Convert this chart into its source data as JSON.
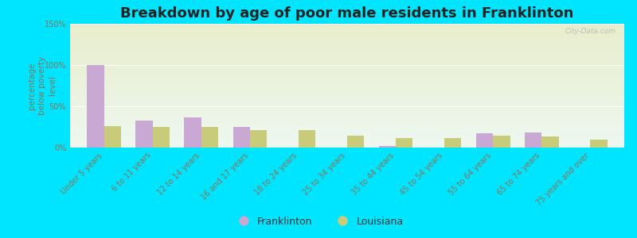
{
  "title": "Breakdown by age of poor male residents in Franklinton",
  "ylabel": "percentage\nbelow poverty\nlevel",
  "categories": [
    "Under 5 years",
    "6 to 11 years",
    "12 to 14 years",
    "16 and 17 years",
    "18 to 24 years",
    "25 to 34 years",
    "35 to 44 years",
    "45 to 54 years",
    "55 to 64 years",
    "65 to 74 years",
    "75 years and over"
  ],
  "franklinton_values": [
    100,
    33,
    37,
    25,
    0,
    0,
    2,
    0,
    17,
    18,
    0
  ],
  "louisiana_values": [
    26,
    25,
    25,
    21,
    21,
    14,
    12,
    12,
    14,
    13,
    10
  ],
  "franklinton_color": "#c9a8d4",
  "louisiana_color": "#c8cc7a",
  "ylim": [
    0,
    150
  ],
  "yticks": [
    0,
    50,
    100,
    150
  ],
  "ytick_labels": [
    "0%",
    "50%",
    "100%",
    "150%"
  ],
  "bg_top_color": "#e8f5f0",
  "bg_bottom_color": "#e8f0c8",
  "outer_background": "#00e5ff",
  "title_fontsize": 13,
  "axis_label_fontsize": 7.5,
  "tick_fontsize": 7,
  "legend_fontsize": 9,
  "watermark_text": "City-Data.com",
  "bar_width": 0.35,
  "tick_color": "#8b7355",
  "ylabel_color": "#8b7355"
}
